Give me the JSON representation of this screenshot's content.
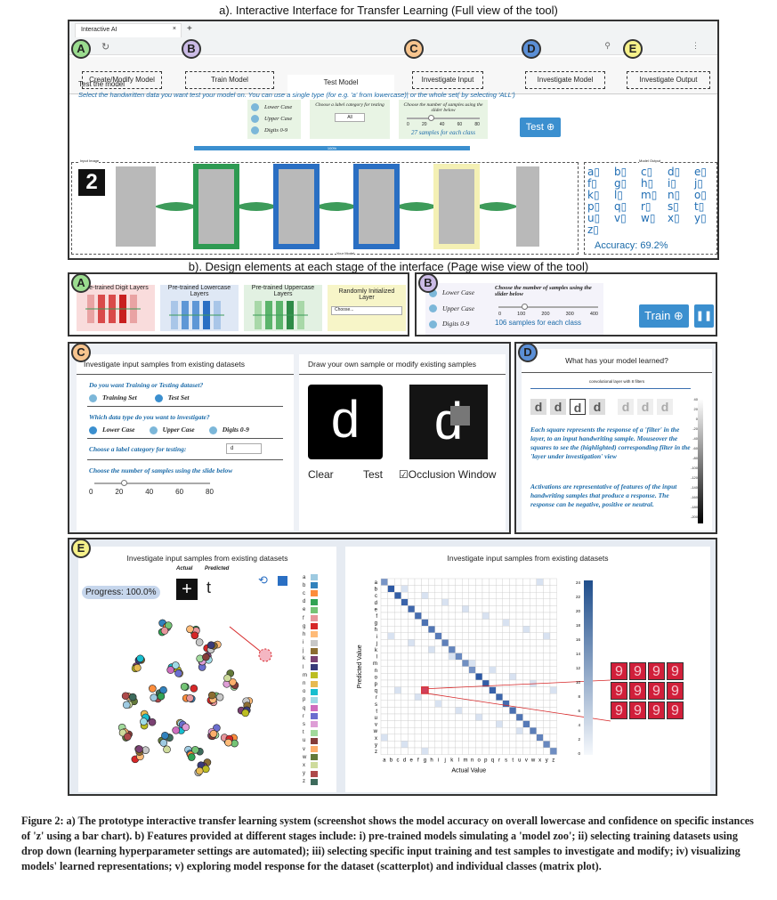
{
  "captions": {
    "a": "a). Interactive Interface for Transfer Learning (Full view of the tool)",
    "b": "b). Design elements at each stage of the interface (Page wise view of the tool)"
  },
  "browser": {
    "tab_title": "Interactive AI",
    "close": "×",
    "new_tab": "+"
  },
  "nav_tabs": [
    "Create/Modify Model",
    "Train Model",
    "Test Model",
    "Investigate Input",
    "Investigate Model",
    "Investigate Output"
  ],
  "badges": [
    "A",
    "B",
    "C",
    "D",
    "E"
  ],
  "test": {
    "heading": "Test the model",
    "instruction": "Select the handwritten data you want test your model on. You can use a single type (for e.g. 'a' from lowercase)| or the whole set( by selecting 'ALL')",
    "options": [
      "Lower Case",
      "Upper Case",
      "Digits 0-9"
    ],
    "label_cat": "Choose a label category for testing",
    "select_value": "All",
    "slider_label": "Choose the number of samples using the slider below",
    "ticks": [
      "0",
      "20",
      "40",
      "60",
      "80"
    ],
    "samples": "27 samples for each class",
    "button": "Test ⊕",
    "progress": "100%",
    "input_label": "Input Image",
    "model_output": "Model Output",
    "your_model": "Your Model",
    "accuracy": "Accuracy: 69.2%",
    "letters": [
      "a",
      "b",
      "c",
      "d",
      "e",
      "f",
      "g",
      "h",
      "i",
      "j",
      "k",
      "l",
      "m",
      "n",
      "o",
      "p",
      "q",
      "r",
      "s",
      "t",
      "u",
      "v",
      "w",
      "x",
      "y",
      "z"
    ],
    "accuracy_value": 0.692
  },
  "panelA": {
    "cards": [
      "Pre-trained Digit Layers",
      "Pre-trained Lowercase Layers",
      "Pre-trained Uppercase Layers",
      "Randomly Initialized Layer"
    ],
    "select": "Choose..."
  },
  "panelB": {
    "options": [
      "Lower Case",
      "Upper Case",
      "Digits 0-9"
    ],
    "slider_label": "Choose the number of samples using the slider below",
    "ticks": [
      "0",
      "100",
      "200",
      "300",
      "400"
    ],
    "samples": "106 samples for each class",
    "train": "Train ⊕",
    "pause": "❚❚"
  },
  "panelC": {
    "title_left": "Investigate input samples from existing datasets",
    "title_right": "Draw your own sample or modify existing samples",
    "q1": "Do you want Training or Testing dataset?",
    "q1_opts": [
      "Training Set",
      "Test Set"
    ],
    "q2": "Which data type do you want to investigate?",
    "q2_opts": [
      "Lower Case",
      "Upper Case",
      "Digits 0-9"
    ],
    "q3": "Choose a label category for testing:",
    "q3_value": "d",
    "q4": "Choose the number of samples using the slide below",
    "ticks": [
      "0",
      "20",
      "40",
      "60",
      "80"
    ],
    "sample_char": "d",
    "buttons": [
      "Clear",
      "Test"
    ],
    "occlusion": "Occlusion Window"
  },
  "panelD": {
    "title": "What has your model learned?",
    "layer_label": "convolutional layer with 8 filters",
    "filters": [
      "d",
      "d",
      "d",
      "d",
      "d",
      "d",
      "d"
    ],
    "text1": "Each square represents the response of a 'filter' in the layer, to an input handwriting sample. Mouseover the squares to see the (highlighted) corresponding filter in the 'layer under investigation' view",
    "text2": "Activations are representative of features of the input handwriting samples that produce a response. The response can be negative, positive or neutral.",
    "scale": [
      "40",
      "20",
      "0",
      "-20",
      "-40",
      "-60",
      "-80",
      "-100",
      "-120",
      "-140",
      "-160",
      "-180",
      "-200"
    ]
  },
  "panelE": {
    "title_left": "Investigate input samples from existing datasets",
    "title_right": "Investigate input samples from existing datasets",
    "actual": "Actual",
    "predicted": "Predicted",
    "progress": "Progress: 100.0%",
    "actual_char": "+",
    "pred_char": "t",
    "x_label": "Actual Value",
    "y_label": "Predicted Value",
    "letters": [
      "a",
      "b",
      "c",
      "d",
      "e",
      "f",
      "g",
      "h",
      "i",
      "j",
      "k",
      "l",
      "m",
      "n",
      "o",
      "p",
      "q",
      "r",
      "s",
      "t",
      "u",
      "v",
      "w",
      "x",
      "y",
      "z"
    ],
    "cbar": [
      "24",
      "22",
      "20",
      "18",
      "16",
      "14",
      "12",
      "10",
      "8",
      "6",
      "4",
      "2",
      "0"
    ],
    "samples": [
      "9",
      "9",
      "9",
      "9",
      "9",
      "9",
      "9",
      "9",
      "9",
      "9",
      "9",
      "9"
    ],
    "colors": [
      "#9ecae1",
      "#3182bd",
      "#fd8d3c",
      "#31a354",
      "#74c476",
      "#e7969c",
      "#d62728",
      "#ffbb78",
      "#c7c7c7",
      "#8c6d31",
      "#7b4173",
      "#393b79",
      "#bcbd22",
      "#e7ba52",
      "#17becf",
      "#9edae5",
      "#ce6dbd",
      "#6b6ecf",
      "#de9ed6",
      "#a1d99b",
      "#843c39",
      "#fdae6b",
      "#637939",
      "#cedb9c",
      "#ad494a",
      "#3d6b5c"
    ]
  },
  "figure_caption": "Figure 2: a) The prototype interactive transfer learning system (screenshot shows the model accuracy on overall lowercase and confidence on specific instances of 'z' using a bar chart). b) Features provided at different stages include: i) pre-trained models simulating a 'model zoo'; ii) selecting training datasets using drop down (learning hyperparameter settings are automated); iii) selecting specific input training and test samples to investigate and modify; iv) visualizing models' learned representations; v) exploring model response for the dataset (scatterplot) and individual classes (matrix plot)."
}
